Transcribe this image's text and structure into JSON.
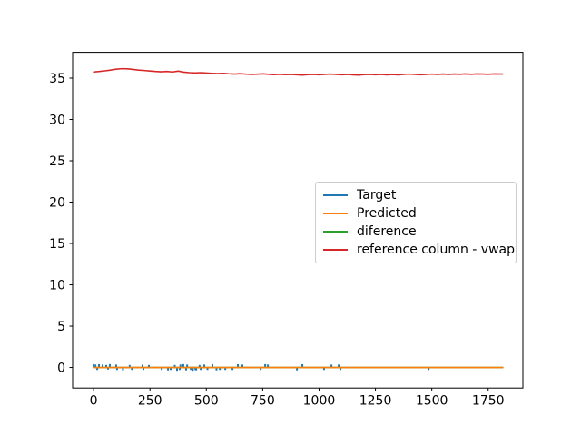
{
  "figure": {
    "background": "#ffffff",
    "frame_color": "#000000",
    "tick_label_color": "#000000"
  },
  "chart_data": {
    "type": "line",
    "title": "",
    "xlabel": "",
    "ylabel": "",
    "grid": false,
    "legend_position": "center-right",
    "xlim": [
      -93,
      1904
    ],
    "ylim": [
      -2.49,
      38.12
    ],
    "xticks": [
      0,
      250,
      500,
      750,
      1000,
      1250,
      1500,
      1750
    ],
    "yticks": [
      0,
      5,
      10,
      15,
      20,
      25,
      30,
      35
    ],
    "draw_order": [
      "Target",
      "diference",
      "Predicted",
      "reference column - vwap"
    ],
    "series": [
      {
        "name": "Target",
        "color": "#1f77b4",
        "style": "spikes-from-zero",
        "points": [
          [
            0,
            0.4
          ],
          [
            8,
            0.35
          ],
          [
            16,
            -0.3
          ],
          [
            24,
            0.4
          ],
          [
            40,
            0.35
          ],
          [
            56,
            0.3
          ],
          [
            64,
            -0.25
          ],
          [
            72,
            0.4
          ],
          [
            100,
            0.35
          ],
          [
            104,
            -0.3
          ],
          [
            130,
            -0.35
          ],
          [
            160,
            0.3
          ],
          [
            170,
            -0.3
          ],
          [
            217,
            0.35
          ],
          [
            221,
            -0.3
          ],
          [
            245,
            0.3
          ],
          [
            302,
            -0.3
          ],
          [
            330,
            -0.35
          ],
          [
            342,
            -0.3
          ],
          [
            360,
            0.3
          ],
          [
            370,
            -0.4
          ],
          [
            382,
            -0.3
          ],
          [
            385,
            0.35
          ],
          [
            398,
            0.4
          ],
          [
            410,
            -0.35
          ],
          [
            415,
            0.35
          ],
          [
            431,
            -0.3
          ],
          [
            440,
            -0.4
          ],
          [
            451,
            -0.3
          ],
          [
            455,
            -0.35
          ],
          [
            470,
            0.3
          ],
          [
            475,
            -0.3
          ],
          [
            491,
            0.35
          ],
          [
            505,
            -0.3
          ],
          [
            527,
            0.4
          ],
          [
            545,
            -0.35
          ],
          [
            560,
            -0.3
          ],
          [
            584,
            -0.3
          ],
          [
            616,
            -0.3
          ],
          [
            640,
            0.4
          ],
          [
            660,
            0.35
          ],
          [
            741,
            -0.3
          ],
          [
            761,
            0.4
          ],
          [
            773,
            0.35
          ],
          [
            902,
            -0.35
          ],
          [
            926,
            0.4
          ],
          [
            1022,
            -0.3
          ],
          [
            1055,
            0.35
          ],
          [
            1087,
            0.35
          ],
          [
            1095,
            -0.3
          ],
          [
            1486,
            -0.3
          ]
        ]
      },
      {
        "name": "Predicted",
        "color": "#ff7f0e",
        "style": "line",
        "points": [
          [
            0,
            0
          ],
          [
            1815,
            0
          ]
        ]
      },
      {
        "name": "diference",
        "color": "#2ca02c",
        "style": "line",
        "points": [
          [
            0,
            0
          ],
          [
            1815,
            0
          ]
        ]
      },
      {
        "name": "reference column - vwap",
        "color": "#d62728",
        "style": "line",
        "points": [
          [
            0,
            35.74
          ],
          [
            25,
            35.8
          ],
          [
            50,
            35.88
          ],
          [
            75,
            35.97
          ],
          [
            100,
            36.08
          ],
          [
            125,
            36.14
          ],
          [
            150,
            36.12
          ],
          [
            175,
            36.05
          ],
          [
            200,
            35.97
          ],
          [
            225,
            35.92
          ],
          [
            250,
            35.86
          ],
          [
            275,
            35.8
          ],
          [
            300,
            35.76
          ],
          [
            325,
            35.8
          ],
          [
            350,
            35.74
          ],
          [
            375,
            35.84
          ],
          [
            400,
            35.72
          ],
          [
            425,
            35.66
          ],
          [
            450,
            35.62
          ],
          [
            475,
            35.66
          ],
          [
            500,
            35.61
          ],
          [
            525,
            35.57
          ],
          [
            550,
            35.54
          ],
          [
            575,
            35.57
          ],
          [
            600,
            35.52
          ],
          [
            625,
            35.49
          ],
          [
            650,
            35.53
          ],
          [
            675,
            35.48
          ],
          [
            700,
            35.44
          ],
          [
            725,
            35.47
          ],
          [
            750,
            35.51
          ],
          [
            775,
            35.46
          ],
          [
            800,
            35.42
          ],
          [
            825,
            35.46
          ],
          [
            850,
            35.41
          ],
          [
            875,
            35.45
          ],
          [
            900,
            35.4
          ],
          [
            925,
            35.36
          ],
          [
            950,
            35.41
          ],
          [
            975,
            35.45
          ],
          [
            1000,
            35.4
          ],
          [
            1025,
            35.44
          ],
          [
            1050,
            35.49
          ],
          [
            1075,
            35.44
          ],
          [
            1100,
            35.4
          ],
          [
            1125,
            35.44
          ],
          [
            1150,
            35.39
          ],
          [
            1175,
            35.36
          ],
          [
            1200,
            35.41
          ],
          [
            1225,
            35.45
          ],
          [
            1250,
            35.4
          ],
          [
            1275,
            35.44
          ],
          [
            1300,
            35.39
          ],
          [
            1325,
            35.43
          ],
          [
            1350,
            35.39
          ],
          [
            1375,
            35.44
          ],
          [
            1400,
            35.48
          ],
          [
            1425,
            35.44
          ],
          [
            1450,
            35.4
          ],
          [
            1475,
            35.44
          ],
          [
            1500,
            35.48
          ],
          [
            1525,
            35.45
          ],
          [
            1550,
            35.49
          ],
          [
            1575,
            35.45
          ],
          [
            1600,
            35.49
          ],
          [
            1625,
            35.46
          ],
          [
            1650,
            35.5
          ],
          [
            1675,
            35.46
          ],
          [
            1700,
            35.5
          ],
          [
            1725,
            35.49
          ],
          [
            1750,
            35.46
          ],
          [
            1775,
            35.5
          ],
          [
            1815,
            35.49
          ]
        ]
      }
    ],
    "legend_entries": [
      "Target",
      "Predicted",
      "diference",
      "reference column - vwap"
    ]
  }
}
